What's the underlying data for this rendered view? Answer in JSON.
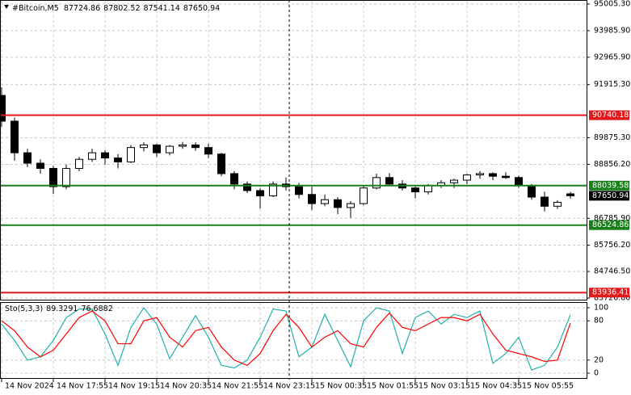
{
  "chart_data": [
    {
      "type": "candlestick",
      "symbol": "#Bitcoin,M5",
      "categories": [
        "14 Nov 2024",
        null,
        null,
        null,
        "14 Nov 17:55",
        null,
        null,
        null,
        "14 Nov 19:15",
        null,
        null,
        null,
        "14 Nov 20:35",
        null,
        null,
        null,
        "14 Nov 21:55",
        null,
        null,
        null,
        "14 Nov 23:15",
        null,
        null,
        null,
        "15 Nov 00:35",
        null,
        null,
        null,
        "15 Nov 01:55",
        null,
        null,
        null,
        "15 Nov 03:15",
        null,
        null,
        null,
        "15 Nov 04:35",
        null,
        null,
        null,
        "15 Nov 05:55",
        null,
        null,
        null,
        null
      ],
      "open": [
        91500,
        90513,
        89300,
        88900,
        88700,
        88000,
        88700,
        89050,
        89300,
        89100,
        88950,
        89500,
        89600,
        89300,
        89550,
        89600,
        89500,
        89250,
        88500,
        88100,
        87850,
        87650,
        88100,
        88000,
        87700,
        87350,
        87500,
        87200,
        87350,
        87950,
        88350,
        88100,
        87950,
        87800,
        88050,
        88150,
        88250,
        88450,
        88500,
        88400,
        88350,
        88050,
        87600,
        87250,
        87724.86
      ],
      "high": [
        91814,
        90650,
        89450,
        89050,
        88800,
        88850,
        89150,
        89450,
        89400,
        89250,
        89600,
        89700,
        89650,
        89600,
        89720,
        89700,
        89650,
        89300,
        88600,
        88200,
        87950,
        88200,
        88350,
        88150,
        88000,
        87700,
        87600,
        87450,
        88050,
        88500,
        88520,
        88250,
        88000,
        88100,
        88250,
        88300,
        88500,
        88600,
        88550,
        88550,
        88420,
        88100,
        87800,
        87480,
        87802.52
      ],
      "low": [
        90300,
        89000,
        88750,
        88500,
        87720,
        87900,
        88600,
        88950,
        88850,
        88700,
        88900,
        89350,
        89150,
        89200,
        89450,
        89380,
        89100,
        88400,
        87900,
        87750,
        87160,
        87600,
        87850,
        87550,
        87100,
        87250,
        86950,
        86800,
        87300,
        87900,
        88050,
        87850,
        87550,
        87700,
        87950,
        87950,
        88100,
        88300,
        88250,
        88300,
        87950,
        87500,
        87050,
        87150,
        87541.14
      ],
      "close": [
        90513,
        89300,
        88900,
        88700,
        88000,
        88700,
        89050,
        89300,
        89100,
        88950,
        89500,
        89600,
        89300,
        89550,
        89600,
        89500,
        89250,
        88500,
        88100,
        87850,
        87650,
        88100,
        88000,
        87700,
        87350,
        87500,
        87200,
        87350,
        87950,
        88350,
        88100,
        87950,
        87800,
        88050,
        88150,
        88250,
        88450,
        88500,
        88400,
        88350,
        88050,
        87600,
        87250,
        87400,
        87650.94
      ],
      "up_color": "#ffffff",
      "down_color": "#000000",
      "outline_color": "#000000",
      "ylim": [
        83726.8,
        95005.3
      ],
      "yticks": [
        {
          "value": 95005.3,
          "label": "95005.30"
        },
        {
          "value": 93985.9,
          "label": "93985.90"
        },
        {
          "value": 92965.9,
          "label": "92965.90"
        },
        {
          "value": 91915.3,
          "label": "91915.30"
        },
        {
          "value": 89875.3,
          "label": "89875.30"
        },
        {
          "value": 88856.2,
          "label": "88856.20"
        },
        {
          "value": 86785.9,
          "label": "86785.90"
        },
        {
          "value": 85756.2,
          "label": "85756.20"
        },
        {
          "value": 84746.5,
          "label": "84746.50"
        },
        {
          "value": 83726.8,
          "label": "83726.80"
        }
      ],
      "levels": [
        {
          "value": 90740.18,
          "color": "#e31a1c"
        },
        {
          "value": 88039.58,
          "color": "#1a7f1a"
        },
        {
          "value": 86524.86,
          "color": "#1a7f1a"
        },
        {
          "value": 83936.41,
          "color": "#e31a1c"
        }
      ],
      "grid": true
    },
    {
      "type": "line",
      "title": "Sto(5,3,3)",
      "series": [
        {
          "color": "#20b2aa",
          "values": [
            75,
            50,
            20,
            25,
            50,
            85,
            98,
            98,
            60,
            12,
            70,
            100,
            75,
            22,
            55,
            88,
            55,
            12,
            8,
            20,
            55,
            98,
            95,
            25,
            40,
            90,
            50,
            10,
            80,
            100,
            95,
            30,
            85,
            95,
            75,
            90,
            85,
            95,
            15,
            30,
            55,
            5,
            12,
            40,
            89.3291
          ]
        },
        {
          "color": "#ff0000",
          "values": [
            80,
            65,
            40,
            25,
            35,
            60,
            85,
            95,
            80,
            45,
            45,
            80,
            85,
            55,
            40,
            65,
            70,
            40,
            20,
            12,
            30,
            65,
            90,
            70,
            40,
            55,
            65,
            45,
            40,
            70,
            92,
            70,
            65,
            75,
            85,
            85,
            80,
            90,
            60,
            35,
            30,
            25,
            18,
            20,
            76.6882
          ]
        }
      ],
      "ylim": [
        0,
        100
      ],
      "yticks": [
        100,
        80,
        20,
        0
      ],
      "grid": true
    }
  ]
}
